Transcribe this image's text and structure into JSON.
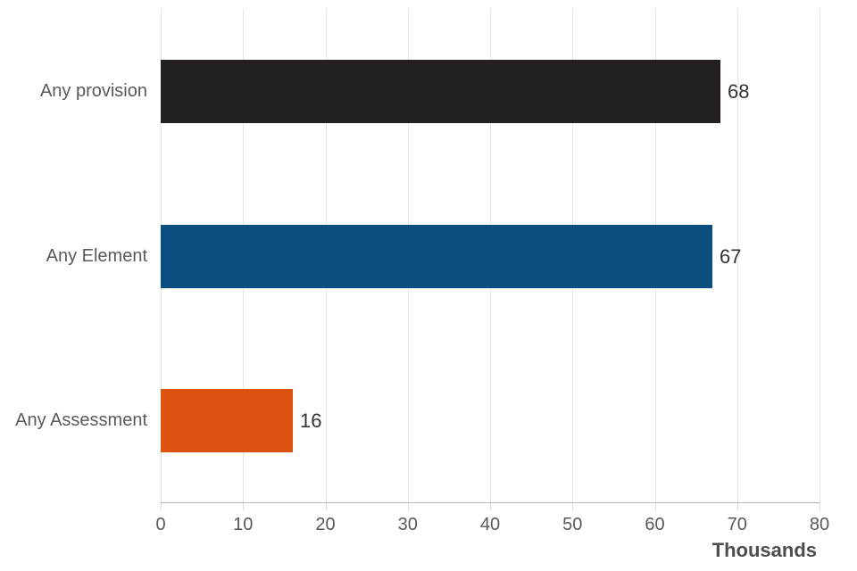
{
  "chart_data": {
    "type": "bar",
    "orientation": "horizontal",
    "title": "",
    "categories": [
      "Any provision",
      "Any Element",
      "Any Assessment"
    ],
    "values": [
      68,
      67,
      16
    ],
    "value_labels": [
      "68",
      "67",
      "16"
    ],
    "bar_colors": [
      "#242021",
      "#0b4e80",
      "#dd520f"
    ],
    "xlabel": "Thousands",
    "ylabel": "",
    "xlim": [
      0,
      80
    ],
    "xticks": [
      0,
      10,
      20,
      30,
      40,
      50,
      60,
      70,
      80
    ],
    "xtick_labels": [
      "0",
      "10",
      "20",
      "30",
      "40",
      "50",
      "60",
      "70",
      "80"
    ],
    "grid": "vertical-gridlines-on",
    "legend": "none",
    "value_labels_shown": true
  },
  "colors": {
    "background": "#ffffff",
    "gridline": "#e5e5e5",
    "axis_line": "#b5b5b5",
    "tick_mark": "#dcdcdc",
    "tick_text": "#595959",
    "category_text": "#595959",
    "value_text": "#333333",
    "axis_title_text": "#4d4d4d"
  }
}
